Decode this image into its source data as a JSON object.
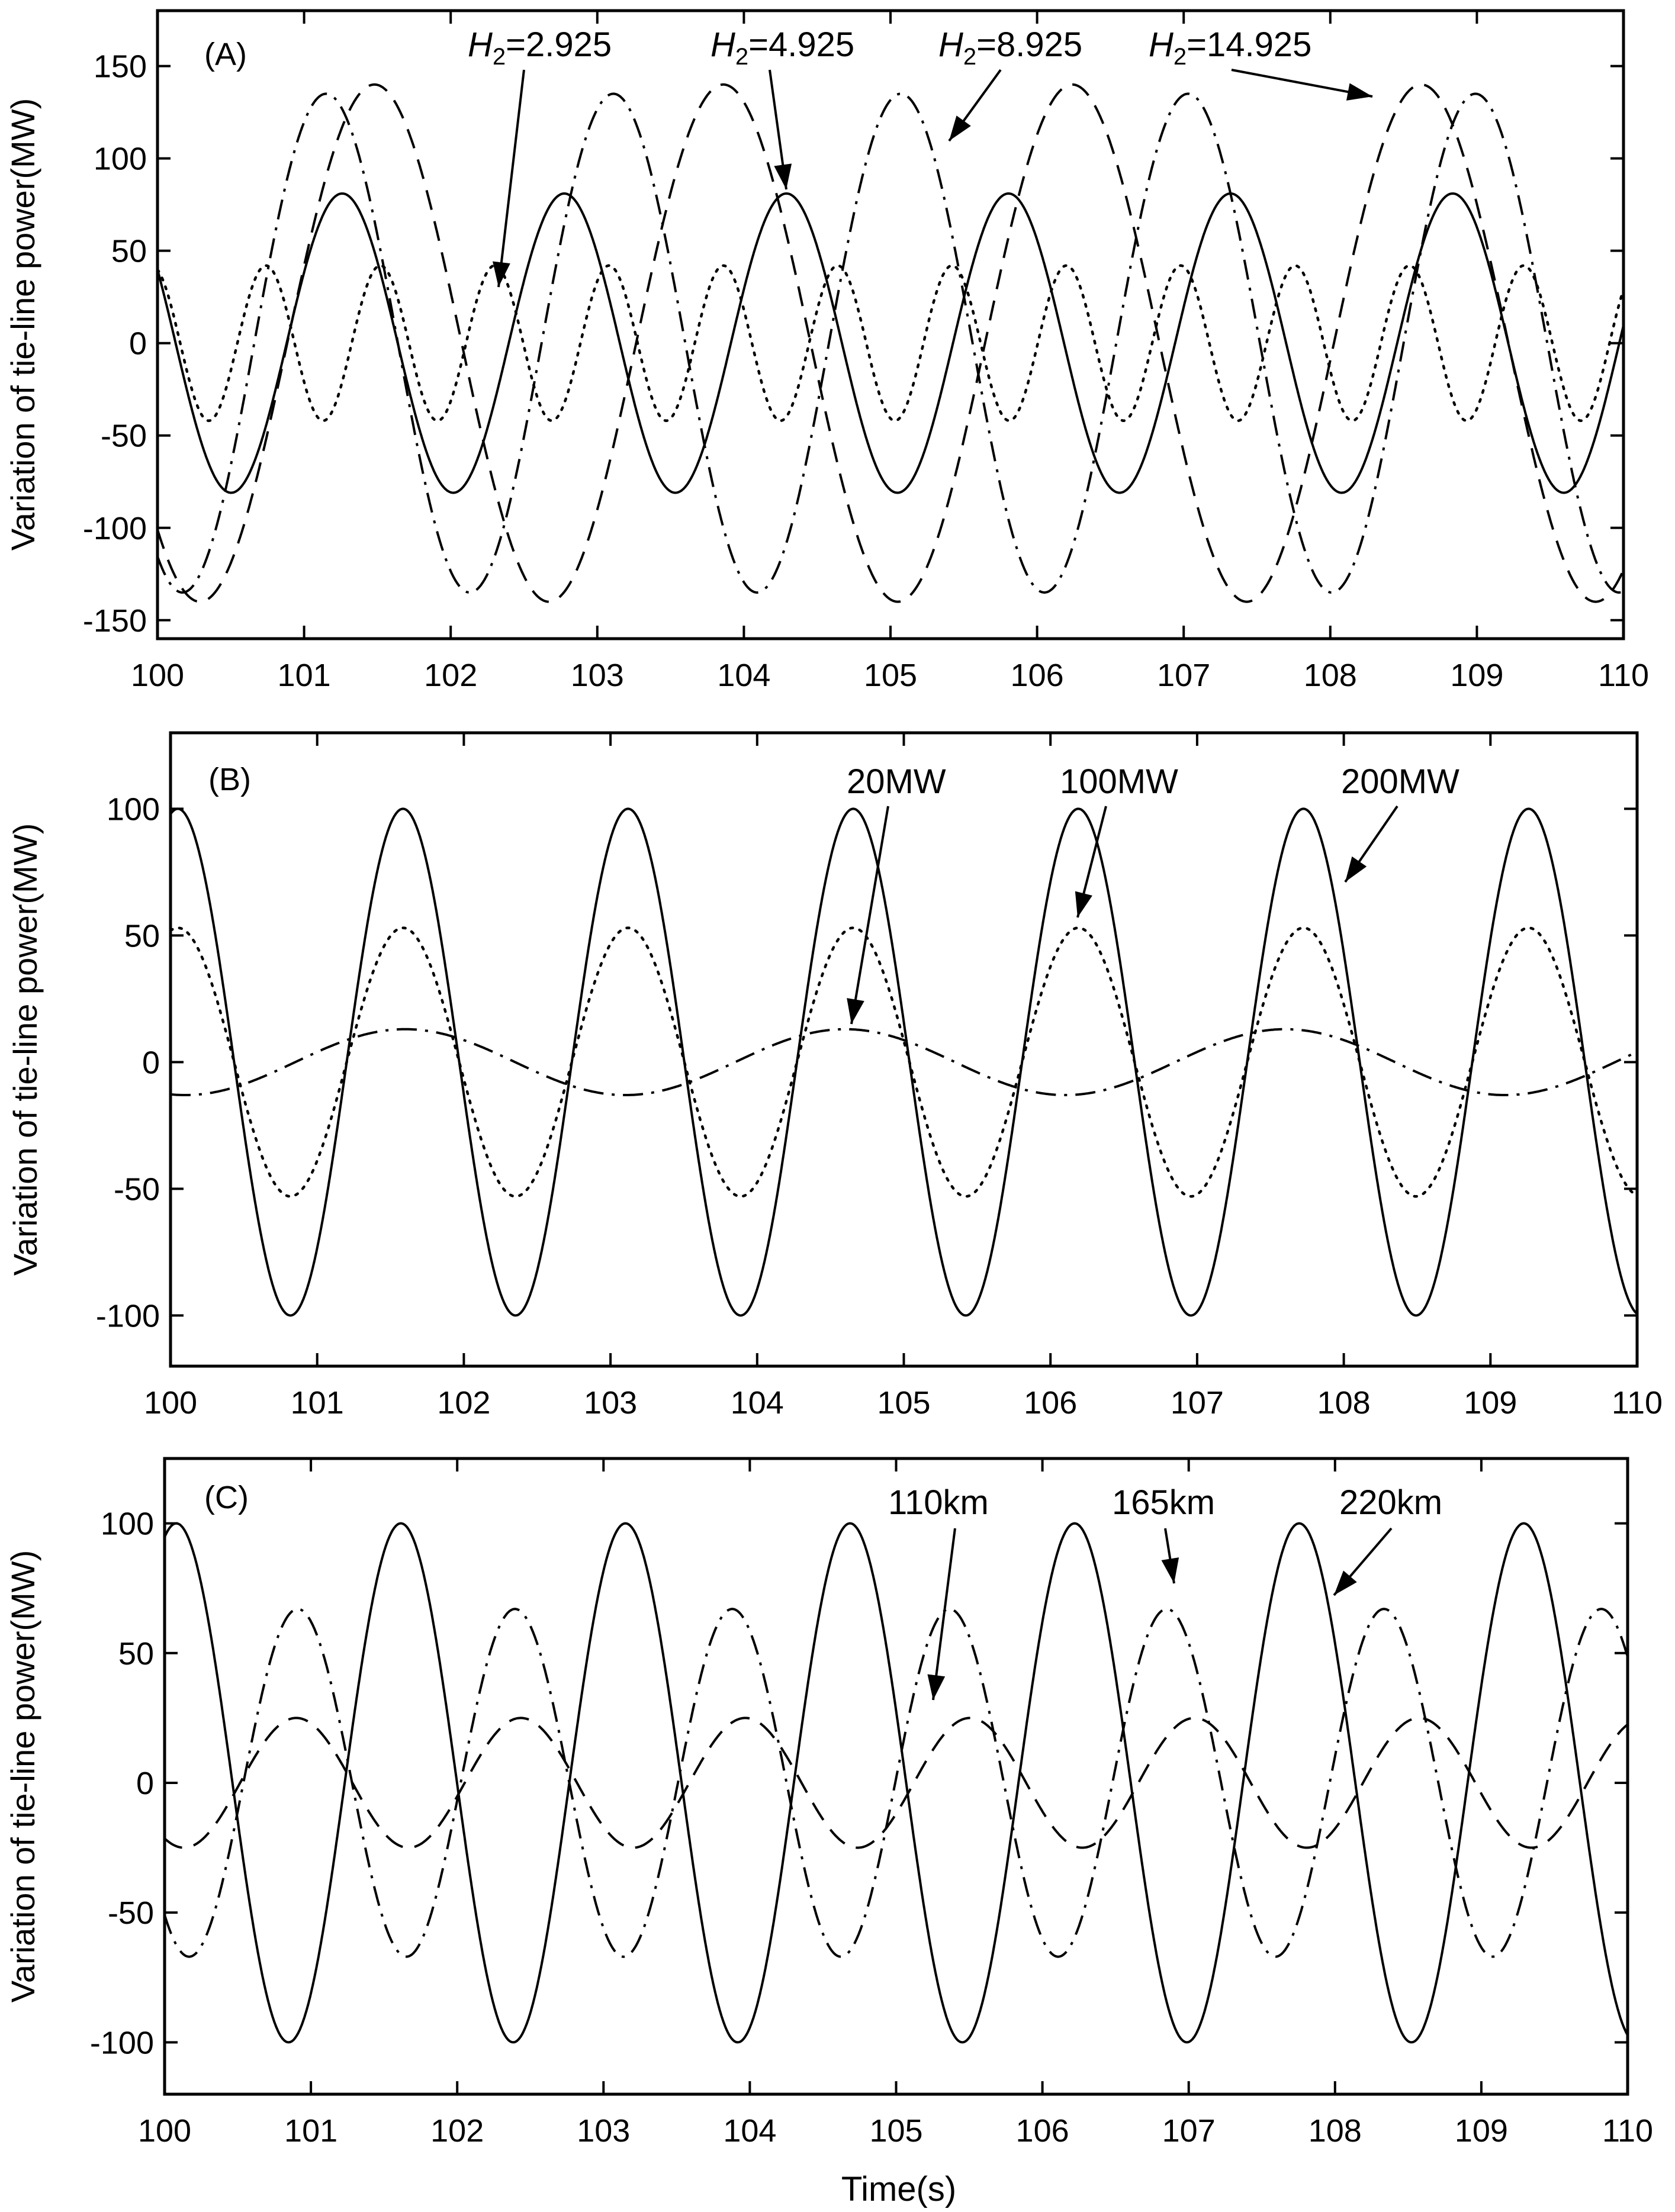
{
  "chart_data": [
    {
      "panel": "(A)",
      "type": "line",
      "xlabel": "",
      "ylabel": "Variation of tie-line power(MW)",
      "xlim": [
        100,
        110
      ],
      "ylim": [
        -160,
        180
      ],
      "xticks": [
        100,
        101,
        102,
        103,
        104,
        105,
        106,
        107,
        108,
        109,
        110
      ],
      "yticks": [
        -150,
        -100,
        -50,
        0,
        50,
        100,
        150
      ],
      "series": [
        {
          "name": "H2=2.925",
          "style": "dotted",
          "amplitude": 42,
          "period": 0.78,
          "peak_time": 100.74
        },
        {
          "name": "H2=4.925",
          "style": "solid",
          "amplitude": 81,
          "period": 1.515,
          "peak_time": 101.26
        },
        {
          "name": "H2=8.925",
          "style": "dashdot",
          "amplitude": 135,
          "period": 1.96,
          "peak_time": 101.15
        },
        {
          "name": "H2=14.925",
          "style": "dashed",
          "amplitude": 140,
          "period": 2.38,
          "peak_time": 101.48
        }
      ],
      "annotations": [
        {
          "label_sub": "2",
          "value": "=2.925",
          "x": 102.3,
          "y": 30
        },
        {
          "label_sub": "2",
          "value": "=4.925",
          "x": 104.3,
          "y": 82
        },
        {
          "label_sub": "2",
          "value": "=8.925",
          "x": 105.45,
          "y": 110
        },
        {
          "label_sub": "2",
          "value": "=14.925",
          "x": 108.35,
          "y": 135
        }
      ]
    },
    {
      "panel": "(B)",
      "type": "line",
      "xlabel": "",
      "ylabel": "Variation of tie-line power(MW)",
      "xlim": [
        100,
        110
      ],
      "ylim": [
        -120,
        130
      ],
      "xticks": [
        100,
        101,
        102,
        103,
        104,
        105,
        106,
        107,
        108,
        109,
        110
      ],
      "yticks": [
        -100,
        -50,
        0,
        50,
        100
      ],
      "series": [
        {
          "name": "200MW",
          "style": "solid",
          "amplitude": 100,
          "period": 1.535,
          "peak_time": 100.05
        },
        {
          "name": "100MW",
          "style": "dotted",
          "amplitude": 53,
          "period": 1.535,
          "peak_time": 100.05
        },
        {
          "name": "20MW",
          "style": "dashdot",
          "amplitude": 13,
          "period": 3.0,
          "peak_time": 101.6
        }
      ],
      "annotations": [
        {
          "label": "20MW",
          "x": 104.58,
          "y": 14
        },
        {
          "label": "100MW",
          "x": 106.13,
          "y": 55
        },
        {
          "label": "200MW",
          "x": 107.74,
          "y": 70
        }
      ]
    },
    {
      "panel": "(C)",
      "type": "line",
      "xlabel": "Time(s)",
      "ylabel": "Variation of tie-line power(MW)",
      "xlim": [
        100,
        110
      ],
      "ylim": [
        -120,
        125
      ],
      "xticks": [
        100,
        101,
        102,
        103,
        104,
        105,
        106,
        107,
        108,
        109,
        110
      ],
      "yticks": [
        -100,
        -50,
        0,
        50,
        100
      ],
      "series": [
        {
          "name": "220km",
          "style": "solid",
          "amplitude": 100,
          "period": 1.535,
          "peak_time": 100.08
        },
        {
          "name": "165km",
          "style": "dashdot",
          "amplitude": 67,
          "period": 1.485,
          "peak_time": 100.91
        },
        {
          "name": "110km",
          "style": "dashed",
          "amplitude": 25,
          "period": 1.535,
          "peak_time": 100.9
        }
      ],
      "annotations": [
        {
          "label": "110km",
          "x": 105.1,
          "y": 25
        },
        {
          "label": "165km",
          "x": 106.85,
          "y": 68
        },
        {
          "label": "220km",
          "x": 107.98,
          "y": 70
        }
      ]
    }
  ],
  "panels": [
    {
      "tag": "(A)",
      "ylabel": "Variation of tie-line power(MW)",
      "ytick_labels": [
        "150",
        "100",
        "50",
        "0",
        "-50",
        "-100",
        "-150"
      ],
      "xtick_labels": [
        "100",
        "101",
        "102",
        "103",
        "104",
        "105",
        "106",
        "107",
        "108",
        "109",
        "110"
      ],
      "annotations": [
        "H",
        "H",
        "H",
        "H"
      ]
    },
    {
      "tag": "(B)",
      "ylabel": "Variation of tie-line power(MW)",
      "ytick_labels": [
        "100",
        "50",
        "0",
        "-50",
        "-100"
      ],
      "xtick_labels": [
        "100",
        "101",
        "102",
        "103",
        "104",
        "105",
        "106",
        "107",
        "108",
        "109",
        "110"
      ],
      "annotations": [
        "20MW",
        "100MW",
        "200MW"
      ]
    },
    {
      "tag": "(C)",
      "ylabel": "Variation of tie-line power(MW)",
      "ytick_labels": [
        "100",
        "50",
        "0",
        "-50",
        "-100"
      ],
      "xtick_labels": [
        "100",
        "101",
        "102",
        "103",
        "104",
        "105",
        "106",
        "107",
        "108",
        "109",
        "110"
      ],
      "annotations": [
        "110km",
        "165km",
        "220km"
      ],
      "xlabel": "Time(s)"
    }
  ]
}
